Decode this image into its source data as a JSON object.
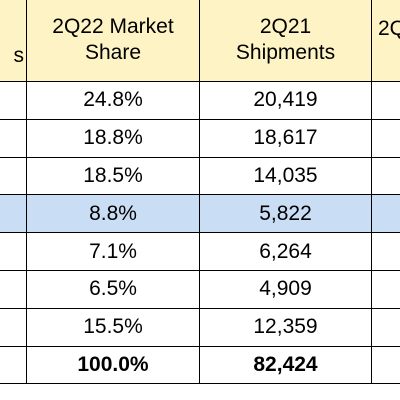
{
  "table": {
    "header": [
      "s",
      "2Q22 Market Share",
      "2Q21 Shipments",
      "2Q"
    ],
    "rows": [
      [
        "24.8%",
        "20,419"
      ],
      [
        "18.8%",
        "18,617"
      ],
      [
        "18.5%",
        "14,035"
      ],
      [
        "8.8%",
        "5,822"
      ],
      [
        "7.1%",
        "6,264"
      ],
      [
        "6.5%",
        "4,909"
      ],
      [
        "15.5%",
        "12,359"
      ],
      [
        "100.0%",
        "82,424"
      ]
    ]
  }
}
